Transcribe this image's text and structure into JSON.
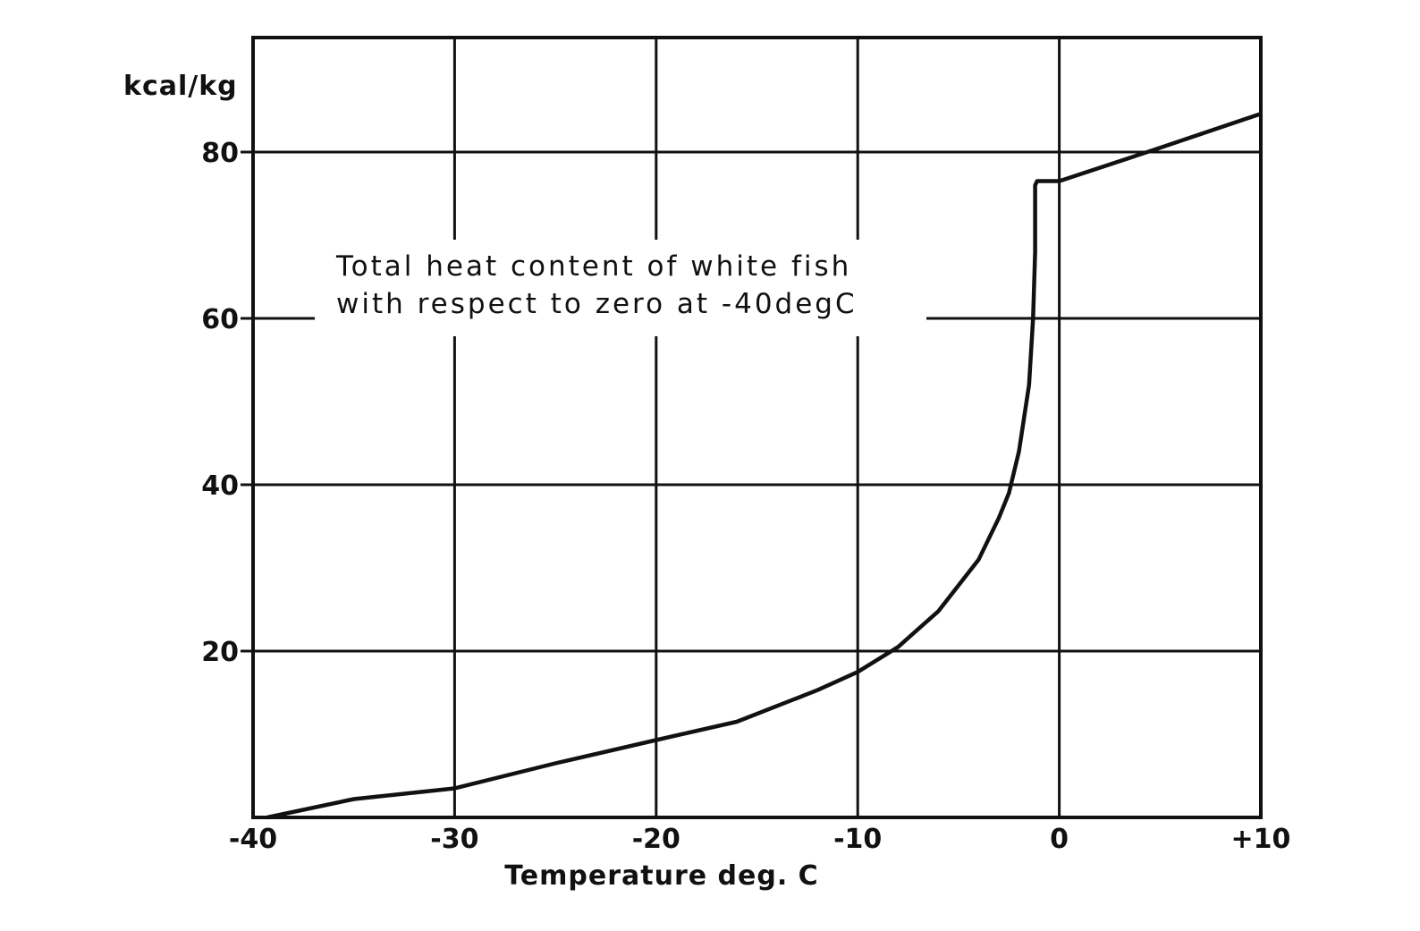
{
  "chart_data": {
    "type": "line",
    "title": "",
    "annotation_lines": [
      "Total heat content of white fish",
      "with respect to zero at -40degC"
    ],
    "xlabel": "Temperature deg. C",
    "ylabel": "kcal/kg",
    "xlim": [
      -40,
      10
    ],
    "ylim": [
      0,
      95
    ],
    "x_ticks": [
      -40,
      -30,
      -20,
      -10,
      0,
      10
    ],
    "x_tick_labels": [
      "-40",
      "-30",
      "-20",
      "-10",
      "0",
      "+10"
    ],
    "y_ticks": [
      20,
      40,
      60,
      80
    ],
    "y_tick_labels": [
      "20",
      "40",
      "60",
      "80"
    ],
    "grid": true,
    "series": [
      {
        "x": [
          -39.3,
          -35,
          -30,
          -25,
          -20,
          -16,
          -12,
          -10,
          -8,
          -6,
          -4,
          -3,
          -2.5,
          -2,
          -1.5,
          -1.3,
          -1.2,
          -1.2,
          -1.1,
          0,
          5,
          10
        ],
        "y": [
          0,
          2.2,
          3.5,
          6.5,
          9.3,
          11.5,
          15.3,
          17.5,
          20.5,
          24.8,
          31,
          36,
          39,
          44,
          52,
          60,
          68,
          76,
          76.5,
          76.5,
          80.5,
          84.6
        ]
      }
    ],
    "color": "#111111"
  }
}
